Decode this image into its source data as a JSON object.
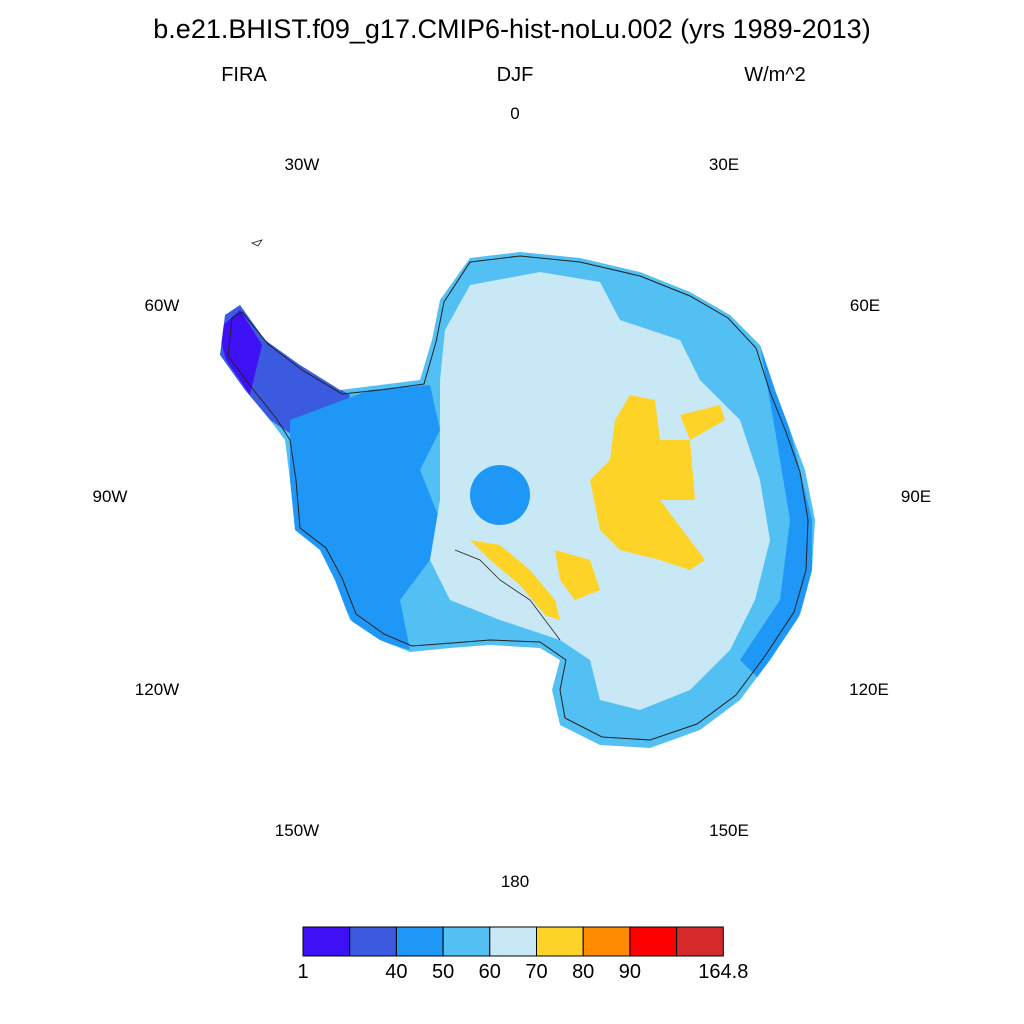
{
  "title": "b.e21.BHIST.f09_g17.CMIP6-hist-noLu.002 (yrs 1989-2013)",
  "left_string": "FIRA",
  "center_string": "DJF",
  "right_string": "W/m^2",
  "longitude_labels": {
    "lon_0": "0",
    "lon_30e": "30E",
    "lon_60e": "60E",
    "lon_90e": "90E",
    "lon_120e": "120E",
    "lon_150e": "150E",
    "lon_180": "180",
    "lon_150w": "150W",
    "lon_120w": "120W",
    "lon_90w": "90W",
    "lon_60w": "60W",
    "lon_30w": "30W"
  },
  "colorbar": {
    "colors": [
      "#3e10f5",
      "#3b5ae0",
      "#1e97f7",
      "#52c0f2",
      "#c8e8f6",
      "#fdd327",
      "#ff8c00",
      "#ff0000",
      "#d42a2a"
    ],
    "labels": [
      "1",
      "40",
      "50",
      "60",
      "70",
      "80",
      "90",
      "164.8"
    ],
    "label_bins": [
      0,
      2,
      3,
      4,
      5,
      6,
      7,
      9
    ]
  },
  "colors": {
    "coastline": "#222222"
  }
}
